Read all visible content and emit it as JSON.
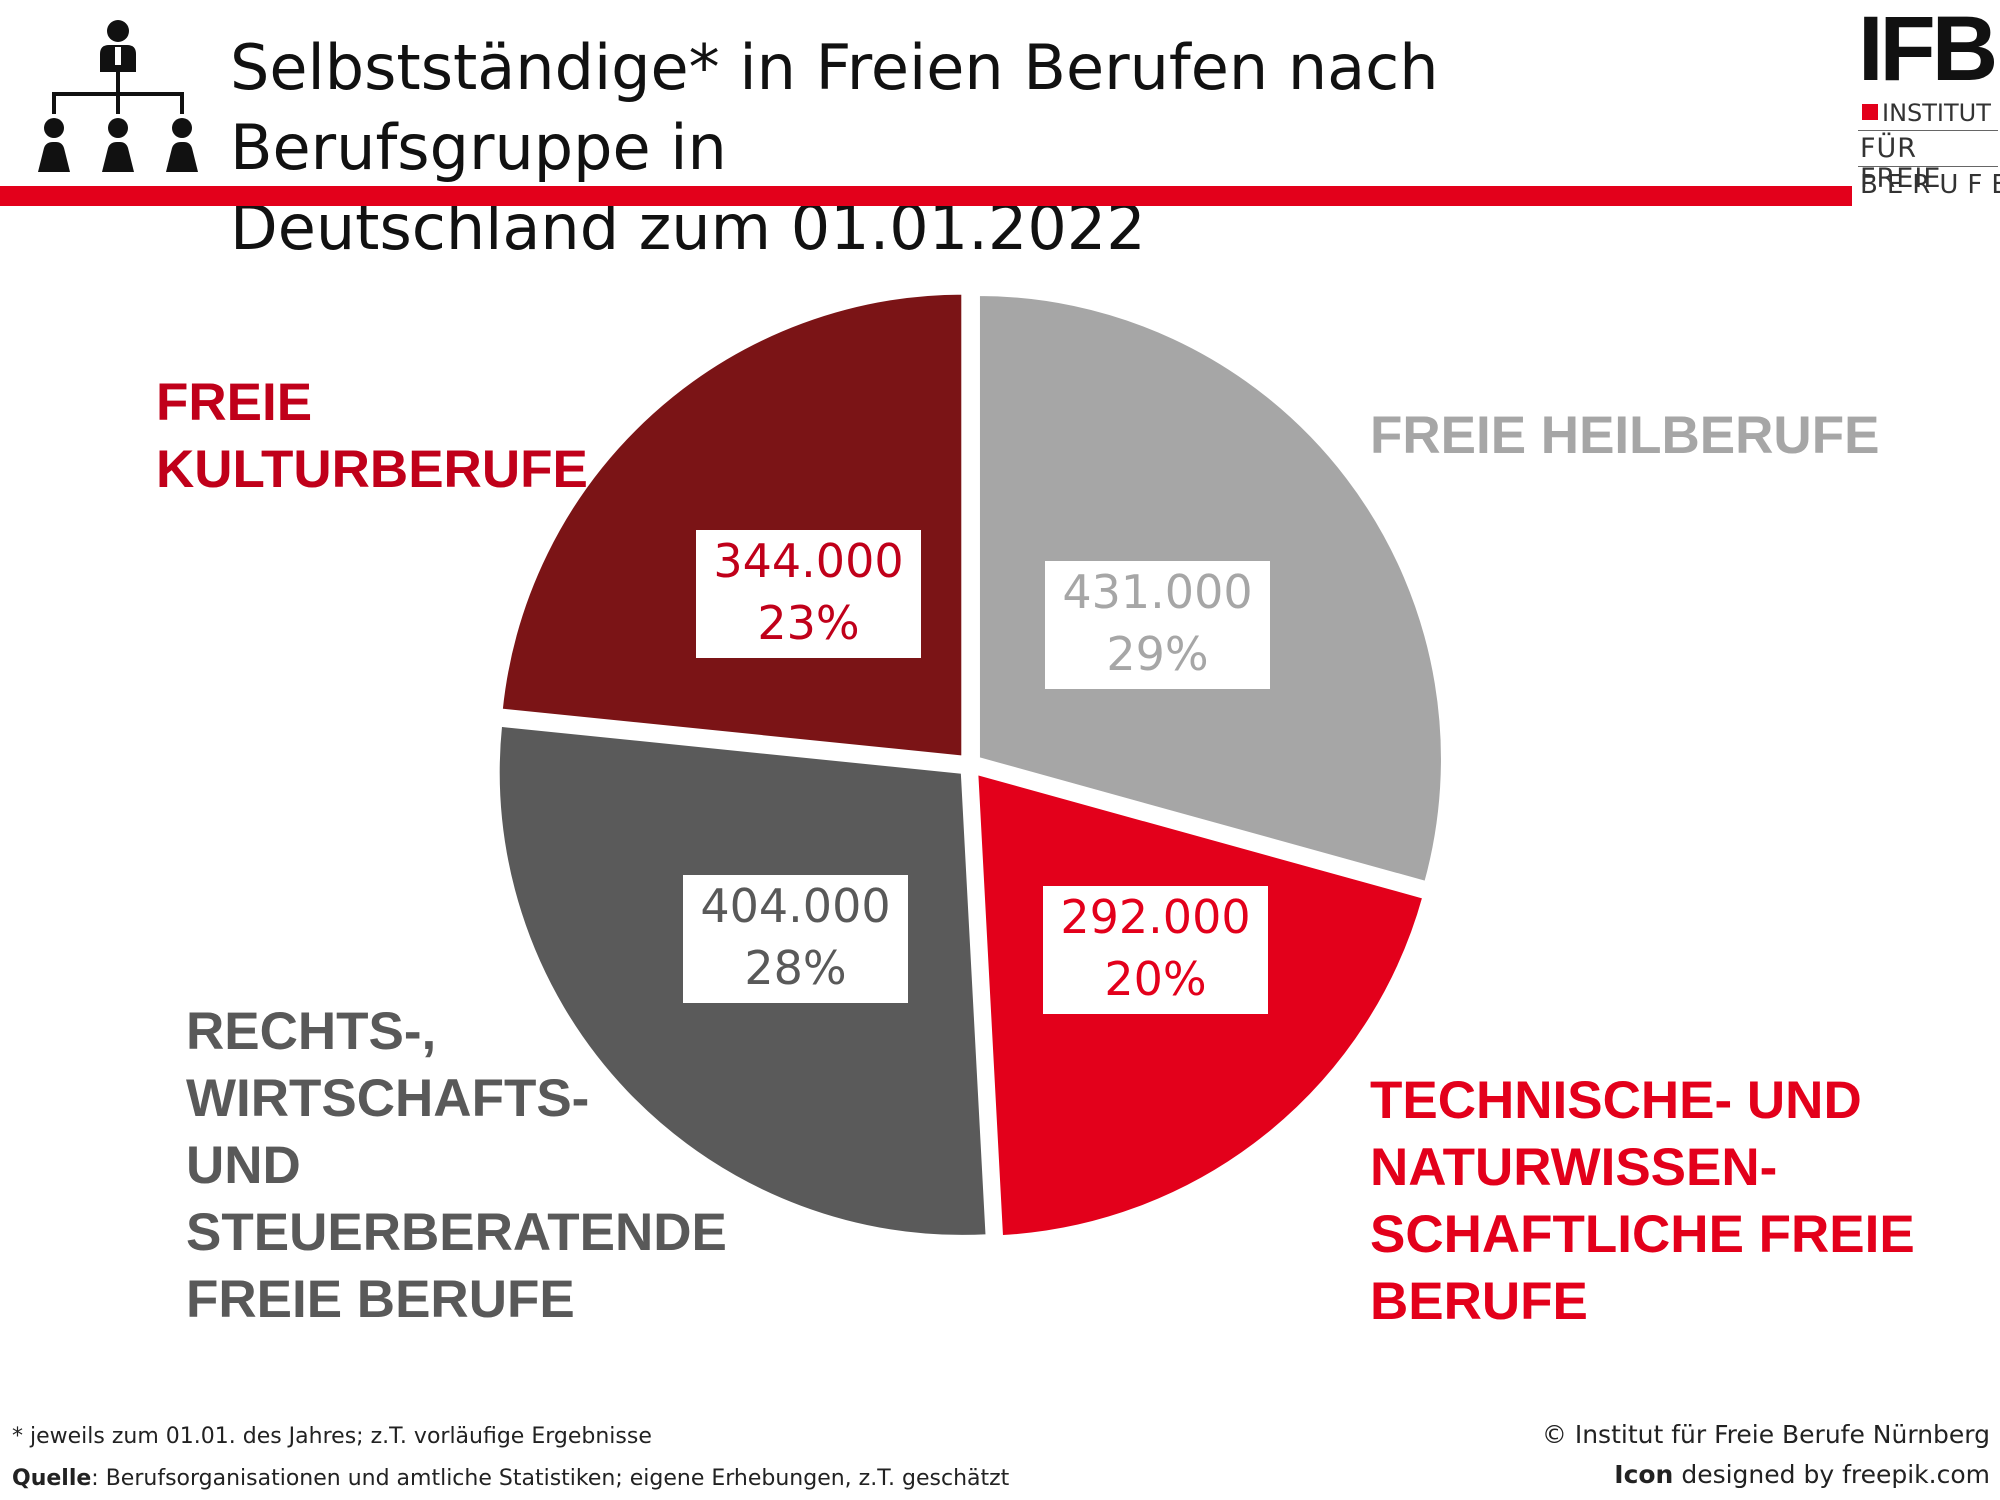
{
  "header": {
    "title_line1": "Selbstständige* in Freien Berufen nach Berufsgruppe in",
    "title_line2": "Deutschland zum 01.01.2022",
    "icon": "org-chart-people-icon",
    "accent_color": "#e3001b"
  },
  "logo": {
    "mark": "IFB",
    "line1": "INSTITUT",
    "line2": "FÜR FREIE",
    "line3": "BERUFE"
  },
  "chart_data": {
    "type": "pie",
    "title": "Selbstständige* in Freien Berufen nach Berufsgruppe in Deutschland zum 01.01.2022",
    "slices": [
      {
        "name": "FREIE HEILBERUFE",
        "value": 431000,
        "value_label": "431.000",
        "percent": 29,
        "percent_label": "29%",
        "color": "#a6a6a6",
        "label_color": "#a6a6a6"
      },
      {
        "name": "TECHNISCHE- UND NATURWISSEN-SCHAFTLICHE FREIE BERUFE",
        "value": 292000,
        "value_label": "292.000",
        "percent": 20,
        "percent_label": "20%",
        "color": "#e3001b",
        "label_color": "#e3001b"
      },
      {
        "name": "RECHTS-, WIRTSCHAFTS- UND STEUERBERATENDE FREIE BERUFE",
        "value": 404000,
        "value_label": "404.000",
        "percent": 28,
        "percent_label": "28%",
        "color": "#5a5a5a",
        "label_color": "#595959"
      },
      {
        "name": "FREIE KULTURBERUFE",
        "value": 344000,
        "value_label": "344.000",
        "percent": 23,
        "percent_label": "23%",
        "color": "#7b1416",
        "label_color": "#c0001a"
      }
    ],
    "start_angle_deg": 0,
    "direction": "clockwise"
  },
  "labels": {
    "heil": [
      "FREIE HEILBERUFE"
    ],
    "tech": [
      "TECHNISCHE- UND",
      "NATURWISSEN-",
      "SCHAFTLICHE FREIE",
      "BERUFE"
    ],
    "recht": [
      "RECHTS-,",
      "WIRTSCHAFTS-",
      "UND",
      "STEUERBERATENDE",
      "FREIE BERUFE"
    ],
    "kultur": [
      "FREIE",
      "KULTURBERUFE"
    ]
  },
  "footer": {
    "footnote": "* jeweils zum 01.01. des Jahres; z.T. vorläufige Ergebnisse",
    "source_label": "Quelle",
    "source_text": ": Berufsorganisationen und amtliche Statistiken; eigene Erhebungen, z.T. geschätzt",
    "copyright": "© Institut für Freie Berufe Nürnberg",
    "icon_credit_bold": "Icon",
    "icon_credit_text": " designed by freepik.com"
  }
}
